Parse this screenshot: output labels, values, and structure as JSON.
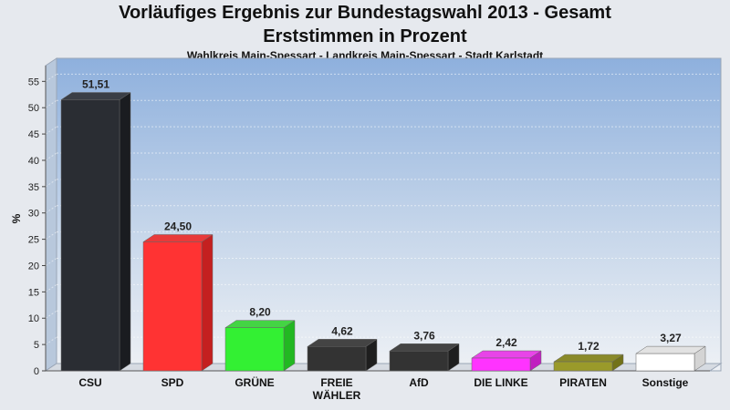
{
  "header": {
    "title_line1": "Vorläufiges Ergebnis zur Bundestagswahl 2013 - Gesamt",
    "title_line2": "Erststimmen in Prozent",
    "subtitle": "Wahlkreis Main-Spessart - Landkreis Main-Spessart - Stadt Karlstadt"
  },
  "chart_data": {
    "type": "bar",
    "title": "Vorläufiges Ergebnis zur Bundestagswahl 2013 - Gesamt",
    "subtitle": "Erststimmen in Prozent",
    "xlabel": "",
    "ylabel": "%",
    "ylim": [
      0,
      58
    ],
    "yticks": [
      0,
      5,
      10,
      15,
      20,
      25,
      30,
      35,
      40,
      45,
      50,
      55
    ],
    "grid": true,
    "categories": [
      [
        "CSU"
      ],
      [
        "SPD"
      ],
      [
        "GRÜNE"
      ],
      [
        "FREIE",
        "WÄHLER"
      ],
      [
        "AfD"
      ],
      [
        "DIE LINKE"
      ],
      [
        "PIRATEN"
      ],
      [
        "Sonstige"
      ]
    ],
    "values": [
      51.51,
      24.5,
      8.2,
      4.62,
      3.76,
      2.42,
      1.72,
      3.27
    ],
    "value_labels": [
      "51,51",
      "24,50",
      "8,20",
      "4,62",
      "3,76",
      "2,42",
      "1,72",
      "3,27"
    ],
    "colors": [
      "#2a2d33",
      "#ff3333",
      "#33f033",
      "#333333",
      "#333333",
      "#ff33ff",
      "#9a9a2a",
      "#ffffff"
    ],
    "colors_dark": [
      "#1a1c20",
      "#c42020",
      "#22b822",
      "#1e1e1e",
      "#1e1e1e",
      "#c020c0",
      "#727218",
      "#d4d4d4"
    ],
    "colors_top": [
      "#3a3e46",
      "#e83a3a",
      "#44d444",
      "#444444",
      "#444444",
      "#e844e8",
      "#8a8a2a",
      "#e2e2e2"
    ]
  }
}
